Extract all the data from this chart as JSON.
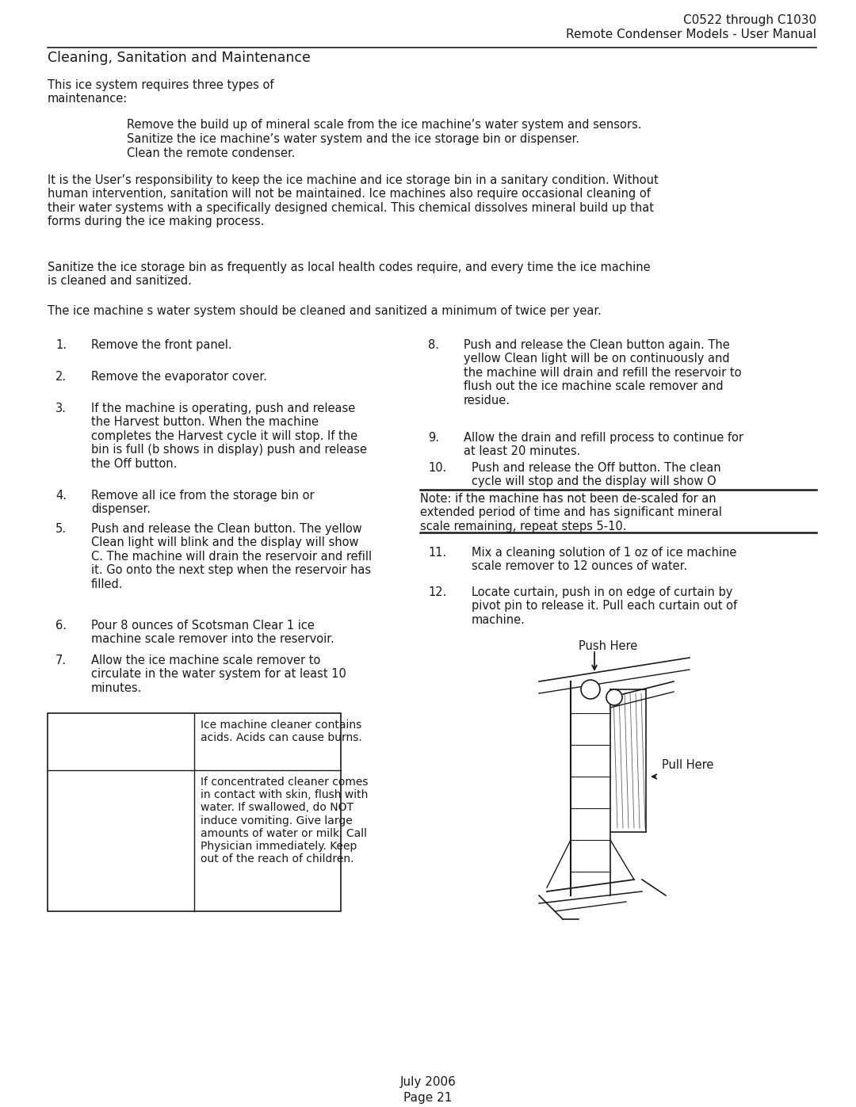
{
  "bg_color": "#ffffff",
  "text_color": "#1a1a1a",
  "header_right_line1": "C0522 through C1030",
  "header_right_line2": "Remote Condenser Models - User Manual",
  "section_title": "Cleaning, Sanitation and Maintenance",
  "intro_text": "This ice system requires three types of\nmaintenance:",
  "bullet1": "Remove the build up of mineral scale from the ice machine’s water system and sensors.",
  "bullet2": "Sanitize the ice machine’s water system and the ice storage bin or dispenser.",
  "bullet3": "Clean the remote condenser.",
  "para1": "It is the User’s responsibility to keep the ice machine and ice storage bin in a sanitary condition. Without\nhuman intervention, sanitation will not be maintained. Ice machines also require occasional cleaning of\ntheir water systems with a specifically designed chemical. This chemical dissolves mineral build up that\nforms during the ice making process.",
  "para2": "Sanitize the ice storage bin as frequently as local health codes require, and every time the ice machine\nis cleaned and sanitized.",
  "para3": "The ice machine s water system should be cleaned and sanitized a minimum of twice per year.",
  "step1": "Remove the front panel.",
  "step2": "Remove the evaporator cover.",
  "step3": "If the machine is operating, push and release\nthe Harvest button. When the machine\ncompletes the Harvest cycle it will stop. If the\nbin is full (b shows in display) push and release\nthe Off button.",
  "step4": "Remove all ice from the storage bin or\ndispenser.",
  "step5": "Push and release the Clean button. The yellow\nClean light will blink and the display will show\nC. The machine will drain the reservoir and refill\nit. Go onto the next step when the reservoir has\nfilled.",
  "step6": "Pour 8 ounces of Scotsman Clear 1 ice\nmachine scale remover into the reservoir.",
  "step7": "Allow the ice machine scale remover to\ncirculate in the water system for at least 10\nminutes.",
  "step8": "Push and release the Clean button again. The\nyellow Clean light will be on continuously and\nthe machine will drain and refill the reservoir to\nflush out the ice machine scale remover and\nresidue.",
  "step9": "Allow the drain and refill process to continue for\nat least 20 minutes.",
  "step10": "Push and release the Off button. The clean\ncycle will stop and the display will show O",
  "note_text": "Note: if the machine has not been de-scaled for an\nextended period of time and has significant mineral\nscale remaining, repeat steps 5-10.",
  "step11": "Mix a cleaning solution of 1 oz of ice machine\nscale remover to 12 ounces of water.",
  "step12": "Locate curtain, push in on edge of curtain by\npivot pin to release it. Pull each curtain out of\nmachine.",
  "push_here_label": "Push Here",
  "pull_here_label": "Pull Here",
  "warning_cell1": "Ice machine cleaner contains\nacids. Acids can cause burns.",
  "warning_cell2": "If concentrated cleaner comes\nin contact with skin, flush with\nwater. If swallowed, do NOT\ninduce vomiting. Give large\namounts of water or milk. Call\nPhysician immediately. Keep\nout of the reach of children.",
  "footer_line1": "July 2006",
  "footer_line2": "Page 21",
  "font_size_header": 11.0,
  "font_size_section": 12.5,
  "font_size_body": 10.5,
  "font_size_footer": 11.0
}
